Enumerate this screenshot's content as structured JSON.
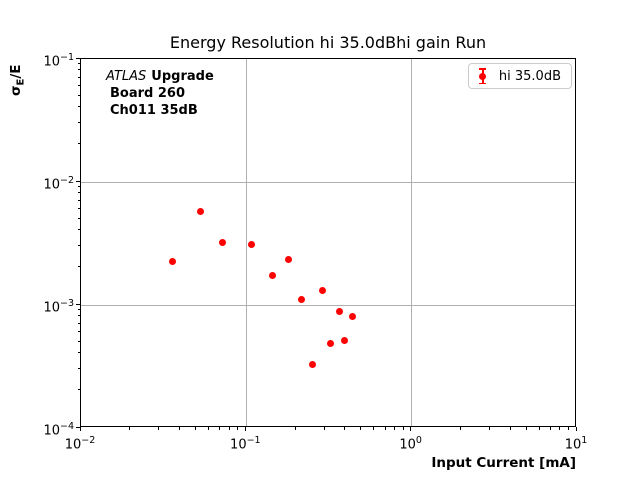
{
  "chart": {
    "title": "Energy Resolution hi 35.0dBhi gain Run",
    "xlabel": "Input Current [mA]",
    "ylabel": {
      "sigma": "σ",
      "sub": "E",
      "rest": "/E"
    },
    "legend_label": "hi 35.0dB",
    "annotation": {
      "line1_italic": "ATLAS",
      "line1_bold": "Upgrade",
      "line2": "Board 260",
      "line3": "Ch011 35dB"
    }
  },
  "chart_data": {
    "type": "scatter",
    "title": "Energy Resolution hi 35.0dBhi gain Run",
    "xlabel": "Input Current [mA]",
    "ylabel": "σ_E/E",
    "xscale": "log",
    "yscale": "log",
    "xlim": [
      0.01,
      10
    ],
    "ylim": [
      0.0001,
      0.1
    ],
    "x_tick_exponents": [
      -2,
      -1,
      0,
      1
    ],
    "y_tick_exponents": [
      -4,
      -3,
      -2,
      -1
    ],
    "x_tick_labels": [
      "10⁻²",
      "10⁻¹",
      "10⁰",
      "10¹"
    ],
    "y_tick_labels": [
      "10⁻⁴",
      "10⁻³",
      "10⁻²",
      "10⁻¹"
    ],
    "grid": true,
    "grid_color": "#b0b0b0",
    "marker_color": "#ff0000",
    "marker_style": "circle-with-errorbar",
    "legend_position": "upper right",
    "series": [
      {
        "name": "hi 35.0dB",
        "color": "#ff0000",
        "x": [
          0.036,
          0.053,
          0.072,
          0.107,
          0.144,
          0.179,
          0.216,
          0.252,
          0.287,
          0.322,
          0.367,
          0.39,
          0.438
        ],
        "y": [
          0.00227,
          0.0058,
          0.0032,
          0.0031,
          0.00173,
          0.00233,
          0.00111,
          0.00033,
          0.0013,
          0.00049,
          0.00089,
          0.00051,
          0.00081
        ]
      }
    ]
  }
}
